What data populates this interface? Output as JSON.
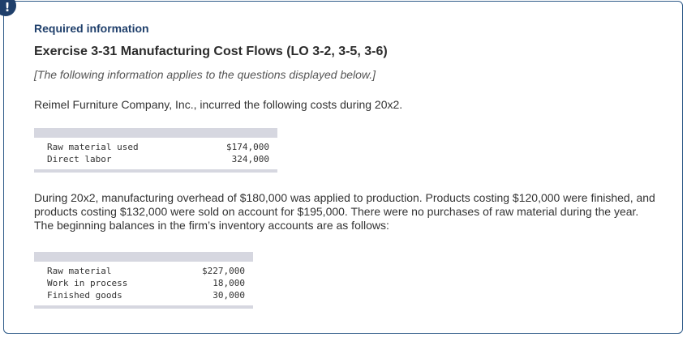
{
  "badge": {
    "text": "!"
  },
  "header": {
    "required": "Required information",
    "exercise_title": "Exercise 3-31 Manufacturing Cost Flows (LO 3-2, 3-5, 3-6)",
    "note": "[The following information applies to the questions displayed below.]"
  },
  "intro": "Reimel Furniture Company, Inc., incurred the following costs during 20x2.",
  "costs_table": {
    "rows": [
      {
        "label": "Raw material used",
        "value": "$174,000"
      },
      {
        "label": "Direct labor",
        "value": "324,000"
      }
    ]
  },
  "body_text": "During 20x2, manufacturing overhead of $180,000 was applied to production. Products costing $120,000 were finished, and products costing $132,000 were sold on account for $195,000. There were no purchases of raw material during the year. The beginning balances in the firm’s inventory accounts are as follows:",
  "balances_table": {
    "rows": [
      {
        "label": "Raw material",
        "value": "$227,000"
      },
      {
        "label": "Work in process",
        "value": "18,000"
      },
      {
        "label": "Finished goods",
        "value": "30,000"
      }
    ]
  },
  "colors": {
    "accent": "#1f3f6b",
    "panel_border": "#2e5a88",
    "table_bar": "#d6d7e0"
  }
}
